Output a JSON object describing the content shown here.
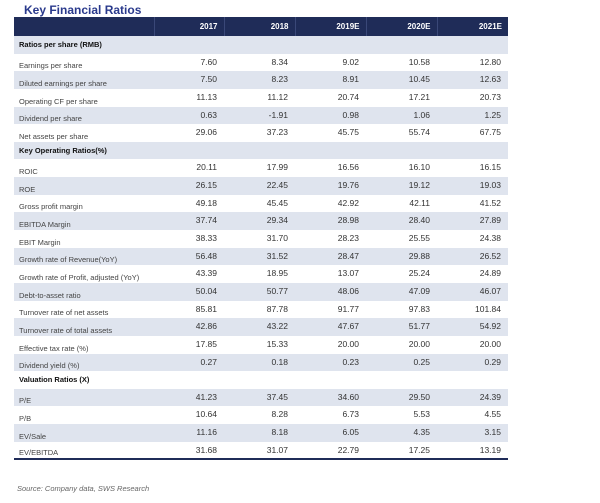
{
  "title": "Key Financial Ratios",
  "columns": [
    "",
    "2017",
    "2018",
    "2019E",
    "2020E",
    "2021E"
  ],
  "rows": [
    {
      "label": "Ratios per share (RMB)",
      "section": true,
      "values": []
    },
    {
      "label": "Earnings per share",
      "values": [
        "7.60",
        "8.34",
        "9.02",
        "10.58",
        "12.80"
      ]
    },
    {
      "label": "Diluted earnings per share",
      "values": [
        "7.50",
        "8.23",
        "8.91",
        "10.45",
        "12.63"
      ]
    },
    {
      "label": "Operating CF per share",
      "values": [
        "11.13",
        "11.12",
        "20.74",
        "17.21",
        "20.73"
      ]
    },
    {
      "label": "Dividend per share",
      "values": [
        "0.63",
        "-1.91",
        "0.98",
        "1.06",
        "1.25"
      ]
    },
    {
      "label": "Net assets per share",
      "values": [
        "29.06",
        "37.23",
        "45.75",
        "55.74",
        "67.75"
      ]
    },
    {
      "label": "Key Operating Ratios(%)",
      "section": true,
      "values": []
    },
    {
      "label": "ROIC",
      "values": [
        "20.11",
        "17.99",
        "16.56",
        "16.10",
        "16.15"
      ]
    },
    {
      "label": "ROE",
      "values": [
        "26.15",
        "22.45",
        "19.76",
        "19.12",
        "19.03"
      ]
    },
    {
      "label": "Gross profit margin",
      "values": [
        "49.18",
        "45.45",
        "42.92",
        "42.11",
        "41.52"
      ]
    },
    {
      "label": "EBITDA Margin",
      "values": [
        "37.74",
        "29.34",
        "28.98",
        "28.40",
        "27.89"
      ]
    },
    {
      "label": "EBIT  Margin",
      "values": [
        "38.33",
        "31.70",
        "28.23",
        "25.55",
        "24.38"
      ]
    },
    {
      "label": "Growth rate of Revenue(YoY)",
      "values": [
        "56.48",
        "31.52",
        "28.47",
        "29.88",
        "26.52"
      ]
    },
    {
      "label": "Growth rate of Profit, adjusted (YoY)",
      "values": [
        "43.39",
        "18.95",
        "13.07",
        "25.24",
        "24.89"
      ]
    },
    {
      "label": "Debt-to-asset ratio",
      "values": [
        "50.04",
        "50.77",
        "48.06",
        "47.09",
        "46.07"
      ]
    },
    {
      "label": "Turnover rate of net assets",
      "values": [
        "85.81",
        "87.78",
        "91.77",
        "97.83",
        "101.84"
      ]
    },
    {
      "label": "Turnover rate of total assets",
      "values": [
        "42.86",
        "43.22",
        "47.67",
        "51.77",
        "54.92"
      ]
    },
    {
      "label": "Effective tax rate (%)",
      "values": [
        "17.85",
        "15.33",
        "20.00",
        "20.00",
        "20.00"
      ]
    },
    {
      "label": "Dividend yield (%)",
      "values": [
        "0.27",
        "0.18",
        "0.23",
        "0.25",
        "0.29"
      ]
    },
    {
      "label": "Valuation Ratios (X)",
      "section": true,
      "values": []
    },
    {
      "label": "P/E",
      "values": [
        "41.23",
        "37.45",
        "34.60",
        "29.50",
        "24.39"
      ]
    },
    {
      "label": "P/B",
      "values": [
        "10.64",
        "8.28",
        "6.73",
        "5.53",
        "4.55"
      ]
    },
    {
      "label": "EV/Sale",
      "values": [
        "11.16",
        "8.18",
        "6.05",
        "4.35",
        "3.15"
      ]
    },
    {
      "label": "EV/EBITDA",
      "values": [
        "31.68",
        "31.07",
        "22.79",
        "17.25",
        "13.19"
      ]
    }
  ],
  "source": "Source: Company data, SWS Research",
  "colors": {
    "header_bg": "#1f2c58",
    "title": "#2a3a8c",
    "stripe": "#dfe4ee"
  }
}
